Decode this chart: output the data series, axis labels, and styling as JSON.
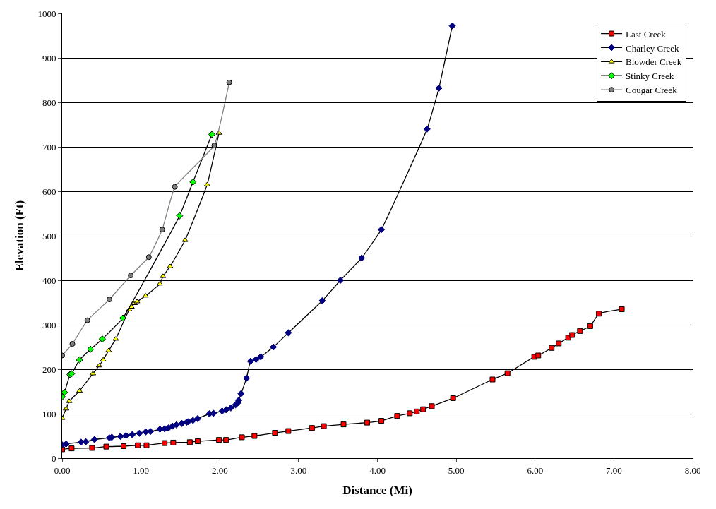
{
  "chart_data": {
    "type": "line",
    "xlabel": "Distance (Mi)",
    "ylabel": "Elevation (Ft)",
    "xlim": [
      0,
      8
    ],
    "xticks": [
      {
        "value": 0,
        "label": "0.00"
      },
      {
        "value": 1,
        "label": "1.00"
      },
      {
        "value": 2,
        "label": "2.00"
      },
      {
        "value": 3,
        "label": "3.00"
      },
      {
        "value": 4,
        "label": "4.00"
      },
      {
        "value": 5,
        "label": "5.00"
      },
      {
        "value": 6,
        "label": "6.00"
      },
      {
        "value": 7,
        "label": "7.00"
      },
      {
        "value": 8,
        "label": "8.00"
      }
    ],
    "ylim": [
      0,
      1000
    ],
    "yticks": [
      0,
      100,
      200,
      300,
      400,
      500,
      600,
      700,
      800,
      900,
      1000
    ],
    "grid": "y",
    "legend": "top right",
    "series": [
      {
        "name": "Last Creek",
        "color": "#ff0000",
        "marker": "square",
        "x": [
          0,
          0.12,
          0.38,
          0.56,
          0.78,
          0.96,
          1.07,
          1.3,
          1.41,
          1.62,
          1.72,
          1.99,
          2.08,
          2.28,
          2.44,
          2.7,
          2.87,
          3.17,
          3.32,
          3.57,
          3.87,
          4.05,
          4.25,
          4.41,
          4.5,
          4.58,
          4.69,
          4.96,
          5.46,
          5.65,
          5.99,
          6.04,
          6.21,
          6.3,
          6.42,
          6.47,
          6.57,
          6.7,
          6.81,
          7.1
        ],
        "values": [
          20,
          22,
          23,
          26,
          27,
          29,
          29,
          34,
          35,
          36,
          38,
          41,
          41,
          47,
          50,
          57,
          61,
          68,
          72,
          76,
          80,
          84,
          95,
          101,
          105,
          110,
          117,
          135,
          177,
          191,
          228,
          231,
          248,
          258,
          271,
          277,
          286,
          297,
          325,
          335
        ]
      },
      {
        "name": "Charley Creek",
        "color": "#000080",
        "marker": "diamond",
        "x": [
          0,
          0.05,
          0.24,
          0.3,
          0.41,
          0.6,
          0.63,
          0.74,
          0.81,
          0.89,
          0.98,
          1.06,
          1.12,
          1.24,
          1.3,
          1.35,
          1.4,
          1.45,
          1.52,
          1.58,
          1.6,
          1.66,
          1.72,
          1.87,
          1.92,
          2.03,
          2.08,
          2.14,
          2.2,
          2.23,
          2.24,
          2.27,
          2.34,
          2.39,
          2.46,
          2.52,
          2.68,
          2.87,
          3.3,
          3.53,
          3.8,
          4.05,
          4.63,
          4.78,
          4.95
        ],
        "values": [
          30,
          32,
          36,
          37,
          42,
          46,
          47,
          49,
          51,
          53,
          56,
          59,
          60,
          65,
          66,
          68,
          72,
          75,
          78,
          81,
          82,
          85,
          89,
          100,
          101,
          106,
          109,
          113,
          120,
          125,
          130,
          145,
          180,
          218,
          222,
          228,
          250,
          282,
          354,
          400,
          450,
          514,
          740,
          832,
          972
        ]
      },
      {
        "name": "Blowder Creek",
        "color": "#ffff00",
        "marker": "triangle",
        "x": [
          0,
          0.05,
          0.09,
          0.22,
          0.39,
          0.47,
          0.52,
          0.59,
          0.68,
          0.85,
          0.88,
          0.92,
          0.95,
          1.06,
          1.24,
          1.28,
          1.37,
          1.56,
          1.84,
          1.99
        ],
        "values": [
          90,
          111,
          128,
          151,
          190,
          208,
          221,
          242,
          268,
          334,
          340,
          348,
          352,
          365,
          392,
          409,
          431,
          490,
          615,
          731
        ]
      },
      {
        "name": "Stinky Creek",
        "color": "#00ff00",
        "marker": "diamond",
        "x": [
          0,
          0.03,
          0.1,
          0.12,
          0.22,
          0.36,
          0.51,
          0.77,
          1.49,
          1.66,
          1.9
        ],
        "values": [
          138,
          148,
          188,
          190,
          221,
          245,
          268,
          315,
          545,
          621,
          728
        ]
      },
      {
        "name": "Cougar Creek",
        "color": "#808080",
        "marker": "circle",
        "x": [
          0,
          0.13,
          0.32,
          0.6,
          0.87,
          1.1,
          1.27,
          1.43,
          1.93,
          2.12
        ],
        "values": [
          231,
          257,
          310,
          357,
          411,
          452,
          514,
          610,
          703,
          845
        ]
      }
    ]
  }
}
